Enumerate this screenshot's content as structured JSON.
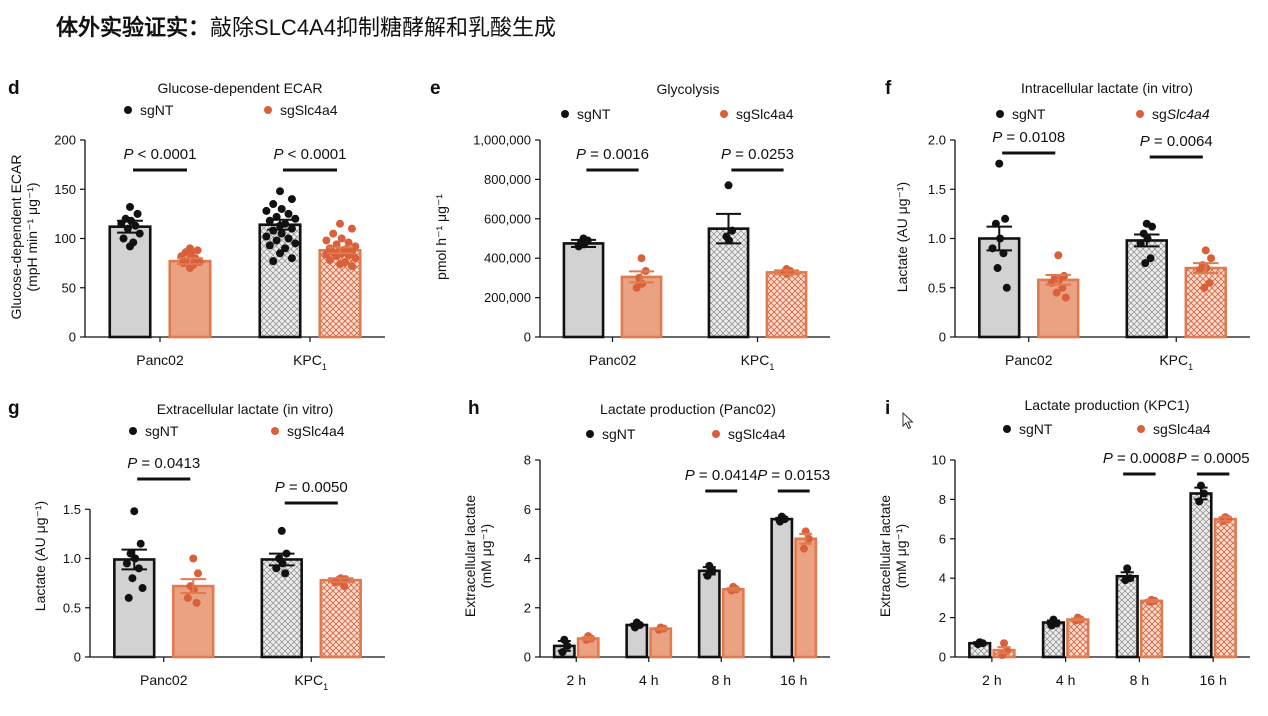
{
  "page_title": {
    "bold": "体外实验证实：",
    "rest": "敲除SLC4A4抑制糖酵解和乳酸生成"
  },
  "colors": {
    "ctrl": "#d2d2d2",
    "ko": "#e07a4f",
    "dot_ctrl": "#111111",
    "dot_ko": "#d9603a",
    "axis": "#111111"
  },
  "legend_labels": {
    "ctrl": "sgNT",
    "ko": "sgSlc4a4"
  },
  "chart_data": [
    {
      "id": "d",
      "type": "bar",
      "panel": "d",
      "title": "Glucose-dependent ECAR",
      "ylabel": [
        "Glucose-dependent ECAR",
        "(mpH min⁻¹ μg⁻¹)"
      ],
      "ylim": [
        0,
        200
      ],
      "yticks": [
        0,
        50,
        100,
        150,
        200
      ],
      "ytick_labels": [
        "0",
        "50",
        "100",
        "150",
        "200"
      ],
      "categories": [
        "Panc02",
        "KPC1"
      ],
      "series": [
        {
          "name": "sgNT",
          "values": [
            112,
            114
          ],
          "errors": [
            6,
            5
          ],
          "points": [
            [
              132,
              125,
              120,
              118,
              115,
              113,
              110,
              105,
              100,
              96,
              92
            ],
            [
              148,
              140,
              135,
              130,
              128,
              125,
              122,
              120,
              118,
              115,
              113,
              110,
              108,
              105,
              102,
              100,
              98,
              95,
              93,
              90,
              85,
              80,
              77
            ]
          ]
        },
        {
          "name": "sgSlc4a4",
          "values": [
            77,
            88
          ],
          "errors": [
            3,
            3
          ],
          "points": [
            [
              90,
              88,
              86,
              85,
              82,
              80,
              78,
              76,
              75,
              73,
              70
            ],
            [
              115,
              110,
              105,
              100,
              98,
              96,
              94,
              92,
              90,
              89,
              88,
              87,
              86,
              85,
              84,
              83,
              82,
              80,
              78,
              76,
              74,
              72
            ]
          ]
        }
      ],
      "annotations": [
        {
          "group": 0,
          "label": "P < 0.0001"
        },
        {
          "group": 1,
          "label": "P < 0.0001"
        }
      ]
    },
    {
      "id": "e",
      "type": "bar",
      "panel": "e",
      "title": "Glycolysis",
      "ylabel": [
        "pmol h⁻¹ μg⁻¹"
      ],
      "ylim": [
        0,
        1000000
      ],
      "yticks": [
        0,
        200000,
        400000,
        600000,
        800000,
        1000000
      ],
      "ytick_labels": [
        "0",
        "200,000",
        "400,000",
        "600,000",
        "800,000",
        "1,000,000"
      ],
      "categories": [
        "Panc02",
        "KPC1"
      ],
      "series": [
        {
          "name": "sgNT",
          "values": [
            475000,
            550000
          ],
          "errors": [
            18000,
            75000
          ],
          "points": [
            [
              500000,
              490000,
              480000,
              470000,
              460000
            ],
            [
              770000,
              540000,
              510000,
              490000
            ]
          ]
        },
        {
          "name": "sgSlc4a4",
          "values": [
            305000,
            328000
          ],
          "errors": [
            28000,
            10000
          ],
          "points": [
            [
              400000,
              335000,
              300000,
              270000,
              250000
            ],
            [
              345000,
              335000,
              330000,
              320000
            ]
          ]
        }
      ],
      "annotations": [
        {
          "group": 0,
          "label": "P = 0.0016"
        },
        {
          "group": 1,
          "label": "P = 0.0253"
        }
      ]
    },
    {
      "id": "f",
      "type": "bar",
      "panel": "f",
      "title": "Intracellular lactate (in vitro)",
      "ylabel": [
        "Lactate (AU μg⁻¹)"
      ],
      "ylim": [
        0,
        2.0
      ],
      "yticks": [
        0,
        0.5,
        1.0,
        1.5,
        2.0
      ],
      "ytick_labels": [
        "0",
        "0.5",
        "1.0",
        "1.5",
        "2.0"
      ],
      "categories": [
        "Panc02",
        "KPC1"
      ],
      "series": [
        {
          "name": "sgNT",
          "values": [
            1.0,
            0.98
          ],
          "errors": [
            0.12,
            0.06
          ],
          "points": [
            [
              1.76,
              1.2,
              1.15,
              1.0,
              0.9,
              0.85,
              0.7,
              0.5
            ],
            [
              1.15,
              1.12,
              1.05,
              1.0,
              0.95,
              0.8,
              0.75
            ]
          ]
        },
        {
          "name": "sgSlc4a4",
          "values": [
            0.58,
            0.7
          ],
          "errors": [
            0.05,
            0.05
          ],
          "points": [
            [
              0.83,
              0.62,
              0.6,
              0.58,
              0.55,
              0.5,
              0.45,
              0.4
            ],
            [
              0.88,
              0.8,
              0.73,
              0.7,
              0.68,
              0.55,
              0.5
            ]
          ]
        }
      ],
      "annotations": [
        {
          "group": 0,
          "label": "P = 0.0108"
        },
        {
          "group": 1,
          "label": "P = 0.0064"
        }
      ]
    },
    {
      "id": "g",
      "type": "bar",
      "panel": "g",
      "title": "Extracellular lactate (in vitro)",
      "ylabel": [
        "Lactate (AU μg⁻¹)"
      ],
      "ylim": [
        0,
        2.0
      ],
      "yticks": [
        0,
        0.5,
        1.0,
        1.5
      ],
      "ytick_labels": [
        "0",
        "0.5",
        "1.0",
        "1.5"
      ],
      "categories": [
        "Panc02",
        "KPC1"
      ],
      "series": [
        {
          "name": "sgNT",
          "values": [
            0.99,
            0.99
          ],
          "errors": [
            0.1,
            0.06
          ],
          "points": [
            [
              1.48,
              1.15,
              1.05,
              1.0,
              0.95,
              0.9,
              0.8,
              0.7,
              0.6
            ],
            [
              1.28,
              1.05,
              1.0,
              0.95,
              0.9,
              0.85
            ]
          ]
        },
        {
          "name": "sgSlc4a4",
          "values": [
            0.72,
            0.78
          ],
          "errors": [
            0.07,
            0.02
          ],
          "points": [
            [
              1.0,
              0.85,
              0.72,
              0.68,
              0.6,
              0.55
            ],
            [
              0.8,
              0.79,
              0.78,
              0.77,
              0.76,
              0.72
            ]
          ]
        }
      ],
      "annotations": [
        {
          "group": 0,
          "label": "P = 0.0413"
        },
        {
          "group": 1,
          "label": "P = 0.0050"
        }
      ]
    },
    {
      "id": "h",
      "type": "bar",
      "panel": "h",
      "title": "Lactate production (Panc02)",
      "ylabel": [
        "Extracellular lactate",
        "(mM μg⁻¹)"
      ],
      "ylim": [
        0,
        8
      ],
      "yticks": [
        0,
        2,
        4,
        6,
        8
      ],
      "ytick_labels": [
        "0",
        "2",
        "4",
        "6",
        "8"
      ],
      "categories": [
        "2 h",
        "4 h",
        "8 h",
        "16 h"
      ],
      "series": [
        {
          "name": "sgNT",
          "values": [
            0.45,
            1.3,
            3.5,
            5.6
          ],
          "errors": [
            0.2,
            0.05,
            0.15,
            0.05
          ],
          "points": [
            [
              0.7,
              0.45,
              0.2
            ],
            [
              1.4,
              1.3,
              1.2
            ],
            [
              3.7,
              3.5,
              3.3
            ],
            [
              5.7,
              5.6,
              5.5
            ]
          ]
        },
        {
          "name": "sgSlc4a4",
          "values": [
            0.75,
            1.15,
            2.75,
            4.8
          ],
          "errors": [
            0.05,
            0.03,
            0.05,
            0.2
          ],
          "points": [
            [
              0.85,
              0.75,
              0.7
            ],
            [
              1.2,
              1.15,
              1.1
            ],
            [
              2.85,
              2.75,
              2.7
            ],
            [
              5.1,
              4.8,
              4.4
            ]
          ]
        }
      ],
      "annotations": [
        {
          "group": 2,
          "label": "P = 0.0414"
        },
        {
          "group": 3,
          "label": "P = 0.0153"
        }
      ]
    },
    {
      "id": "i",
      "type": "bar",
      "panel": "i",
      "title": "Lactate production (KPC1)",
      "ylabel": [
        "Extracellular lactate",
        "(mM μg⁻¹)"
      ],
      "ylim": [
        0,
        10
      ],
      "yticks": [
        0,
        2,
        4,
        6,
        8,
        10
      ],
      "ytick_labels": [
        "0",
        "2",
        "4",
        "6",
        "8",
        "10"
      ],
      "categories": [
        "2 h",
        "4 h",
        "8 h",
        "16 h"
      ],
      "series": [
        {
          "name": "sgNT",
          "values": [
            0.7,
            1.75,
            4.1,
            8.3
          ],
          "errors": [
            0.05,
            0.1,
            0.2,
            0.3
          ],
          "points": [
            [
              0.75,
              0.7,
              0.65
            ],
            [
              1.9,
              1.7,
              1.6
            ],
            [
              4.5,
              4.0,
              3.9
            ],
            [
              8.7,
              8.3,
              7.9
            ]
          ]
        },
        {
          "name": "sgSlc4a4",
          "values": [
            0.35,
            1.9,
            2.85,
            7.0
          ],
          "errors": [
            0.15,
            0.05,
            0.05,
            0.1
          ],
          "points": [
            [
              0.7,
              0.3,
              0.1
            ],
            [
              2.0,
              1.9,
              1.85
            ],
            [
              2.9,
              2.85,
              2.8
            ],
            [
              7.1,
              7.0,
              6.9
            ]
          ]
        }
      ],
      "annotations": [
        {
          "group": 2,
          "label": "P = 0.0008"
        },
        {
          "group": 3,
          "label": "P = 0.0005"
        }
      ]
    }
  ]
}
